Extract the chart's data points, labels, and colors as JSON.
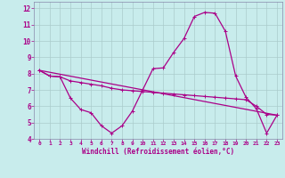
{
  "xlabel": "Windchill (Refroidissement éolien,°C)",
  "bg_color": "#c8ecec",
  "line_color": "#aa0088",
  "grid_color": "#aacccc",
  "spine_color": "#8888aa",
  "xlim": [
    -0.5,
    23.5
  ],
  "ylim": [
    4,
    12.4
  ],
  "xticks": [
    0,
    1,
    2,
    3,
    4,
    5,
    6,
    7,
    8,
    9,
    10,
    11,
    12,
    13,
    14,
    15,
    16,
    17,
    18,
    19,
    20,
    21,
    22,
    23
  ],
  "yticks": [
    4,
    5,
    6,
    7,
    8,
    9,
    10,
    11,
    12
  ],
  "line1_x": [
    0,
    1,
    2,
    3,
    4,
    5,
    6,
    7,
    8,
    9,
    10,
    11,
    12,
    13,
    14,
    15,
    16,
    17,
    18,
    19,
    20,
    21,
    22,
    23
  ],
  "line1_y": [
    8.2,
    7.85,
    7.8,
    6.5,
    5.8,
    5.6,
    4.8,
    4.35,
    4.8,
    5.7,
    7.0,
    8.3,
    8.35,
    9.3,
    10.15,
    11.5,
    11.75,
    11.7,
    10.6,
    7.85,
    6.55,
    5.85,
    4.35,
    5.45
  ],
  "line2_x": [
    0,
    1,
    2,
    3,
    4,
    5,
    6,
    7,
    8,
    9,
    10,
    11,
    12,
    13,
    14,
    15,
    16,
    17,
    18,
    19,
    20,
    21,
    22,
    23
  ],
  "line2_y": [
    8.2,
    7.85,
    7.8,
    7.55,
    7.45,
    7.35,
    7.25,
    7.1,
    7.0,
    6.95,
    6.9,
    6.85,
    6.8,
    6.75,
    6.7,
    6.65,
    6.6,
    6.55,
    6.5,
    6.45,
    6.4,
    6.0,
    5.5,
    5.45
  ],
  "line3_x": [
    0,
    23
  ],
  "line3_y": [
    8.2,
    5.45
  ]
}
